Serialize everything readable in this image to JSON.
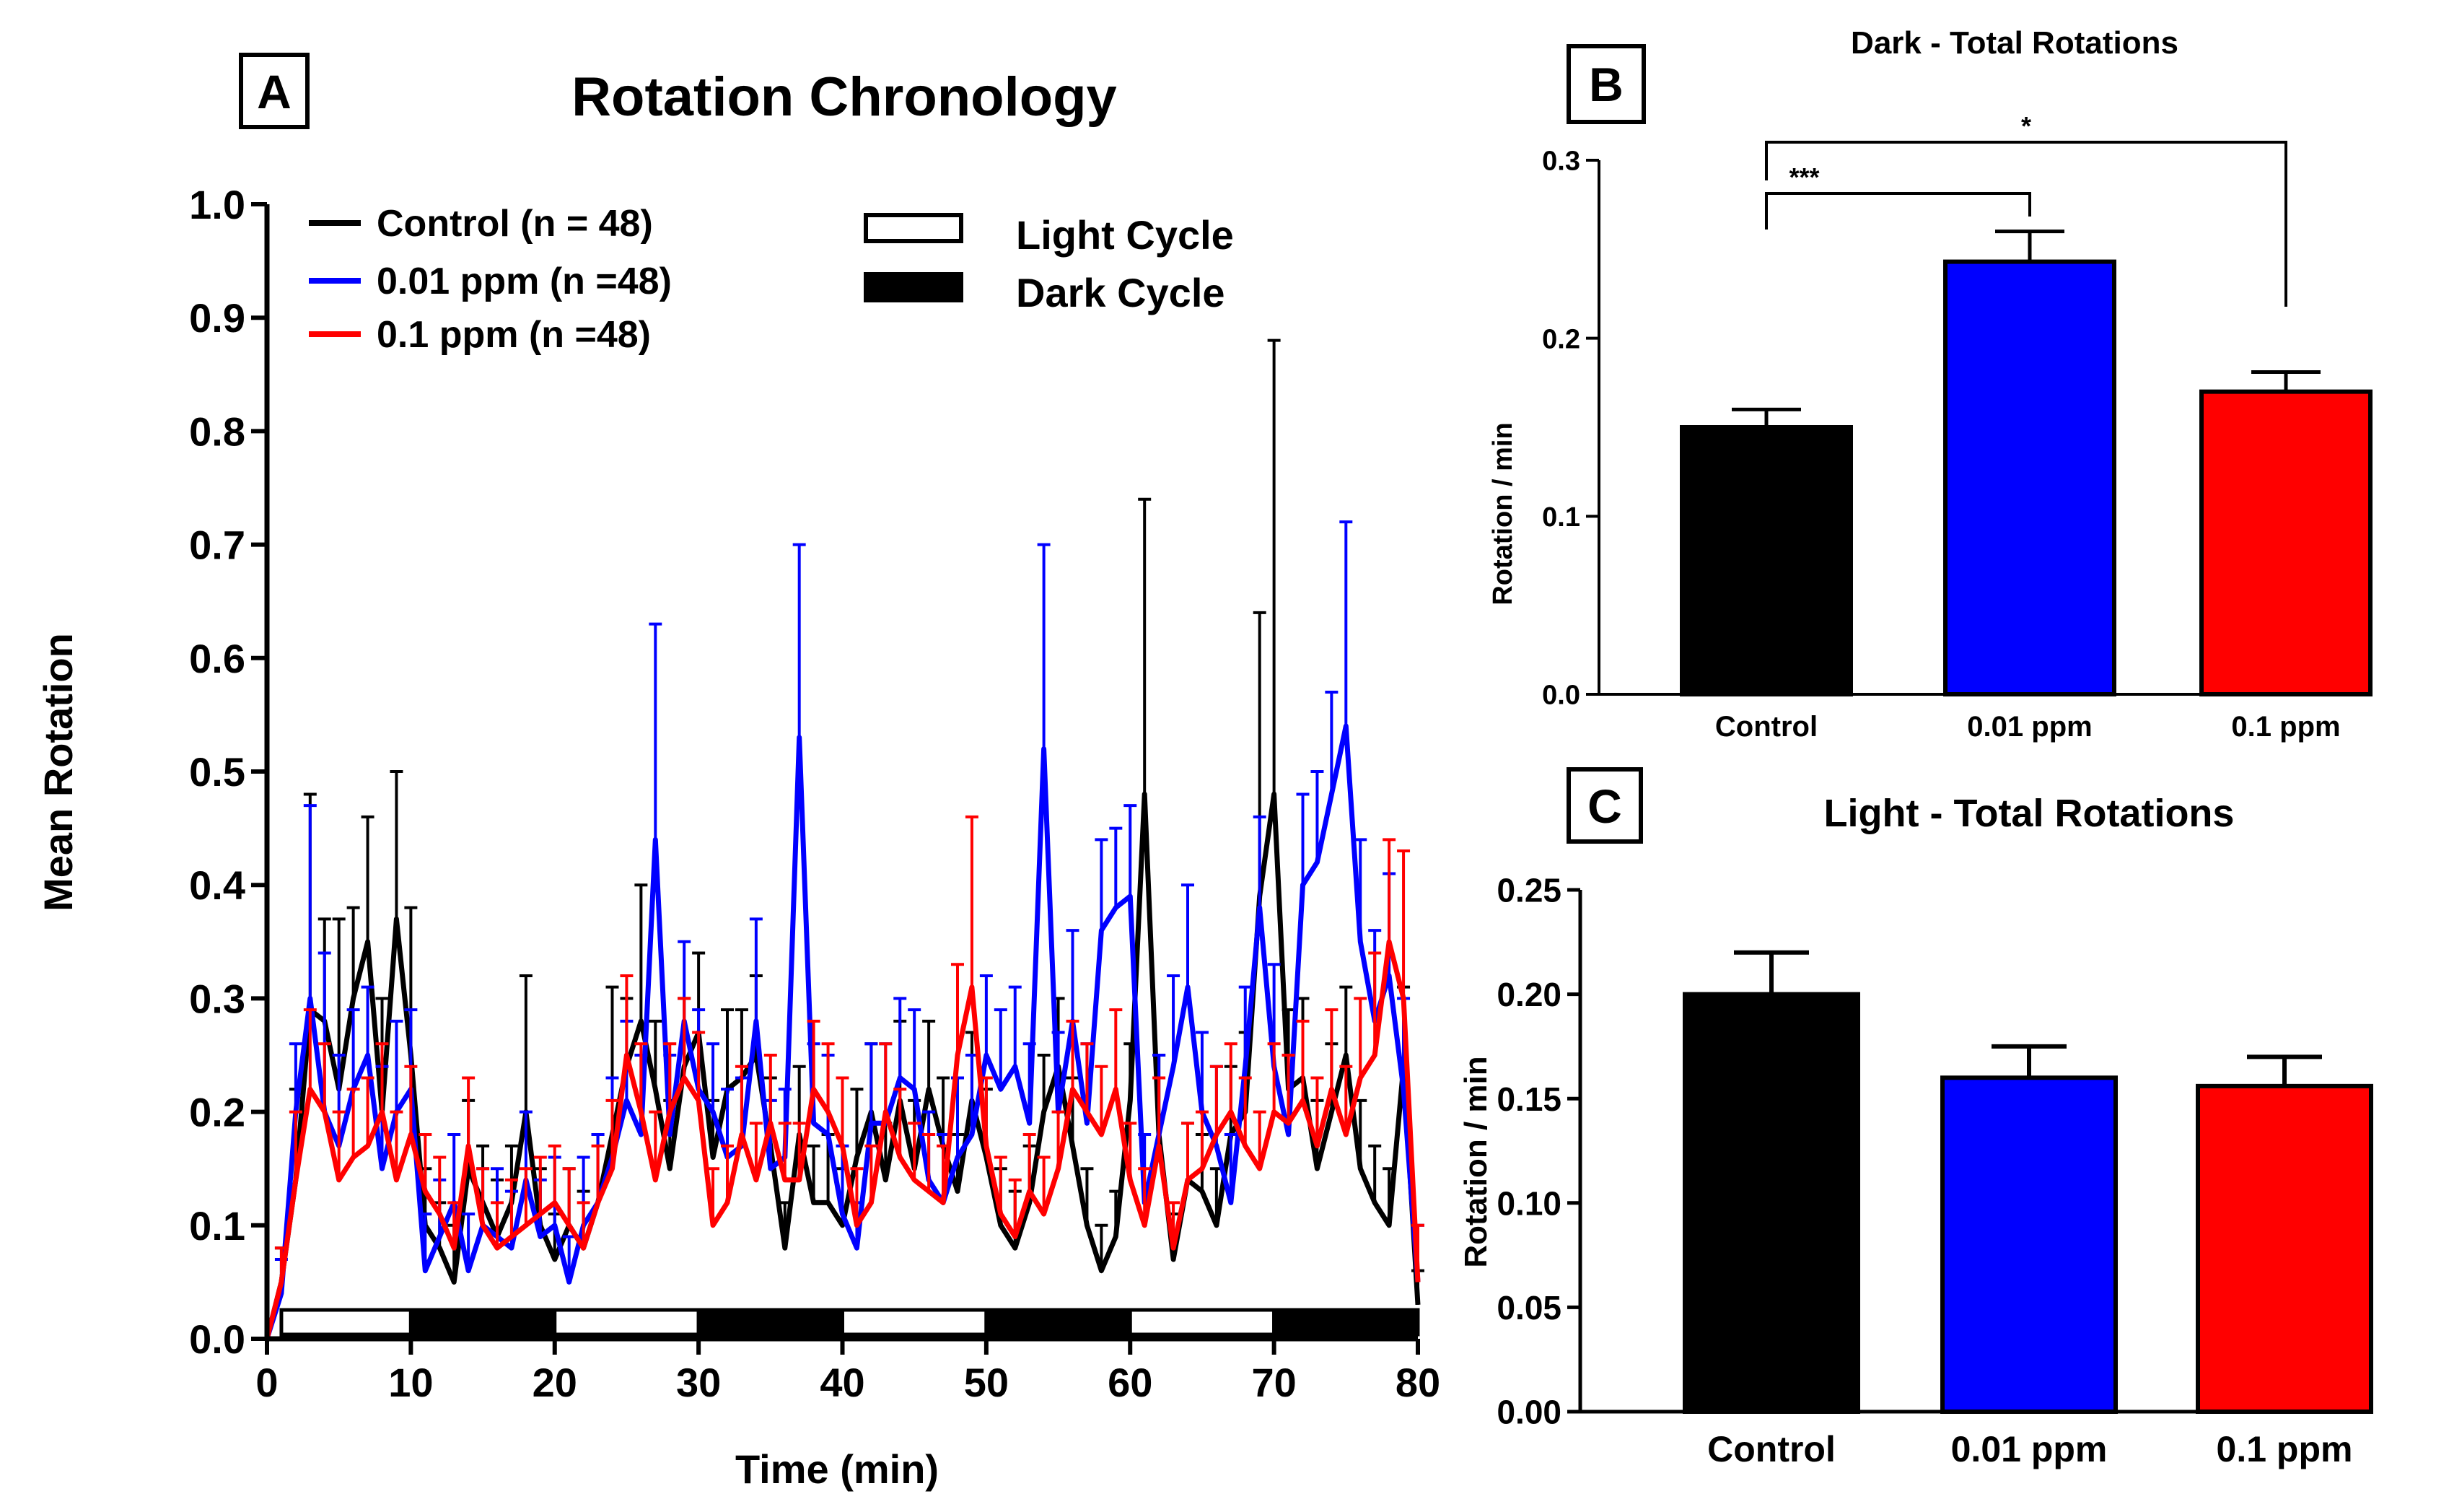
{
  "chart_data": [
    {
      "panel": "A",
      "type": "line",
      "title": "Rotation Chronology",
      "xlabel": "Time (min)",
      "ylabel": "Mean Rotation",
      "xlim": [
        0,
        80
      ],
      "ylim": [
        0,
        1.0
      ],
      "x_ticks": [
        "0",
        "10",
        "20",
        "30",
        "40",
        "50",
        "60",
        "70",
        "80"
      ],
      "y_ticks": [
        "0.0",
        "0.1",
        "0.2",
        "0.3",
        "0.4",
        "0.5",
        "0.6",
        "0.7",
        "0.8",
        "0.9",
        "1.0"
      ],
      "legend": {
        "series": [
          "Control (n = 48)",
          "0.01 ppm (n =48)",
          "0.1 ppm (n =48)"
        ],
        "cycles": [
          "Light Cycle",
          "Dark Cycle"
        ]
      },
      "cycles": [
        {
          "type": "light",
          "start": 1,
          "end": 10
        },
        {
          "type": "dark",
          "start": 10,
          "end": 20
        },
        {
          "type": "light",
          "start": 20,
          "end": 30
        },
        {
          "type": "dark",
          "start": 30,
          "end": 40
        },
        {
          "type": "light",
          "start": 40,
          "end": 50
        },
        {
          "type": "dark",
          "start": 50,
          "end": 60
        },
        {
          "type": "light",
          "start": 60,
          "end": 70
        },
        {
          "type": "dark",
          "start": 70,
          "end": 80
        }
      ],
      "x": [
        0,
        1,
        2,
        3,
        4,
        5,
        6,
        7,
        8,
        9,
        10,
        11,
        12,
        13,
        14,
        15,
        16,
        17,
        18,
        19,
        20,
        21,
        22,
        23,
        24,
        25,
        26,
        27,
        28,
        29,
        30,
        31,
        32,
        33,
        34,
        35,
        36,
        37,
        38,
        39,
        40,
        41,
        42,
        43,
        44,
        45,
        46,
        47,
        48,
        49,
        50,
        51,
        52,
        53,
        54,
        55,
        56,
        57,
        58,
        59,
        60,
        61,
        62,
        63,
        64,
        65,
        66,
        67,
        68,
        69,
        70,
        71,
        72,
        73,
        74,
        75,
        76,
        77,
        78,
        79,
        80
      ],
      "series": [
        {
          "name": "Control (n = 48)",
          "color": "#000000",
          "values": [
            0,
            0.05,
            0.14,
            0.29,
            0.28,
            0.22,
            0.3,
            0.35,
            0.2,
            0.37,
            0.25,
            0.1,
            0.08,
            0.05,
            0.15,
            0.12,
            0.09,
            0.12,
            0.2,
            0.1,
            0.07,
            0.1,
            0.08,
            0.12,
            0.18,
            0.24,
            0.28,
            0.22,
            0.15,
            0.24,
            0.27,
            0.16,
            0.22,
            0.23,
            0.25,
            0.17,
            0.08,
            0.18,
            0.12,
            0.12,
            0.1,
            0.16,
            0.2,
            0.14,
            0.21,
            0.15,
            0.22,
            0.17,
            0.13,
            0.21,
            0.16,
            0.1,
            0.08,
            0.12,
            0.2,
            0.24,
            0.17,
            0.1,
            0.06,
            0.09,
            0.21,
            0.48,
            0.18,
            0.07,
            0.14,
            0.13,
            0.1,
            0.18,
            0.2,
            0.39,
            0.48,
            0.22,
            0.23,
            0.15,
            0.2,
            0.25,
            0.15,
            0.12,
            0.1,
            0.24,
            0.03
          ],
          "errors": [
            0,
            0.03,
            0.08,
            0.19,
            0.09,
            0.15,
            0.08,
            0.11,
            0.1,
            0.13,
            0.13,
            0.05,
            0.04,
            0.05,
            0.06,
            0.05,
            0.05,
            0.05,
            0.12,
            0.05,
            0.04,
            0.05,
            0.05,
            0.06,
            0.13,
            0.06,
            0.12,
            0.06,
            0.06,
            0.06,
            0.07,
            0.05,
            0.07,
            0.06,
            0.07,
            0.06,
            0.04,
            0.06,
            0.05,
            0.06,
            0.05,
            0.06,
            0.06,
            0.05,
            0.07,
            0.06,
            0.06,
            0.06,
            0.05,
            0.06,
            0.06,
            0.05,
            0.05,
            0.05,
            0.05,
            0.06,
            0.06,
            0.05,
            0.04,
            0.04,
            0.05,
            0.26,
            0.07,
            0.04,
            0.05,
            0.05,
            0.05,
            0.06,
            0.07,
            0.25,
            0.4,
            0.07,
            0.07,
            0.06,
            0.06,
            0.06,
            0.06,
            0.05,
            0.05,
            0.07,
            0.03
          ]
        },
        {
          "name": "0.01 ppm (n =48)",
          "color": "#0000ff",
          "values": [
            0,
            0.04,
            0.2,
            0.3,
            0.2,
            0.17,
            0.22,
            0.25,
            0.15,
            0.2,
            0.22,
            0.06,
            0.09,
            0.12,
            0.06,
            0.1,
            0.09,
            0.08,
            0.14,
            0.09,
            0.1,
            0.05,
            0.1,
            0.12,
            0.16,
            0.21,
            0.18,
            0.44,
            0.18,
            0.28,
            0.22,
            0.2,
            0.16,
            0.17,
            0.28,
            0.15,
            0.16,
            0.53,
            0.19,
            0.18,
            0.11,
            0.08,
            0.19,
            0.19,
            0.23,
            0.22,
            0.14,
            0.12,
            0.16,
            0.18,
            0.25,
            0.22,
            0.24,
            0.19,
            0.52,
            0.2,
            0.28,
            0.19,
            0.36,
            0.38,
            0.39,
            0.12,
            0.18,
            0.24,
            0.31,
            0.2,
            0.17,
            0.12,
            0.24,
            0.38,
            0.24,
            0.18,
            0.4,
            0.42,
            0.48,
            0.54,
            0.35,
            0.28,
            0.32,
            0.22,
            0.05
          ],
          "errors": [
            0,
            0.03,
            0.06,
            0.17,
            0.14,
            0.08,
            0.07,
            0.06,
            0.09,
            0.08,
            0.07,
            0.05,
            0.05,
            0.06,
            0.05,
            0.05,
            0.06,
            0.05,
            0.06,
            0.05,
            0.06,
            0.04,
            0.06,
            0.06,
            0.07,
            0.07,
            0.07,
            0.19,
            0.07,
            0.07,
            0.07,
            0.06,
            0.06,
            0.06,
            0.09,
            0.06,
            0.06,
            0.17,
            0.07,
            0.07,
            0.06,
            0.04,
            0.07,
            0.07,
            0.07,
            0.07,
            0.06,
            0.06,
            0.07,
            0.07,
            0.07,
            0.07,
            0.07,
            0.07,
            0.18,
            0.07,
            0.08,
            0.07,
            0.08,
            0.07,
            0.08,
            0.06,
            0.07,
            0.08,
            0.09,
            0.07,
            0.07,
            0.06,
            0.07,
            0.08,
            0.09,
            0.07,
            0.08,
            0.08,
            0.09,
            0.18,
            0.09,
            0.08,
            0.09,
            0.08,
            0.05
          ]
        },
        {
          "name": "0.1 ppm (n =48)",
          "color": "#ff0000",
          "values": [
            0,
            0.05,
            0.14,
            0.22,
            0.2,
            0.14,
            0.16,
            0.17,
            0.2,
            0.14,
            0.18,
            0.13,
            0.11,
            0.08,
            0.17,
            0.1,
            0.08,
            0.09,
            0.1,
            0.11,
            0.12,
            0.1,
            0.08,
            0.12,
            0.15,
            0.25,
            0.2,
            0.14,
            0.2,
            0.23,
            0.21,
            0.1,
            0.12,
            0.18,
            0.14,
            0.19,
            0.14,
            0.14,
            0.22,
            0.2,
            0.17,
            0.1,
            0.12,
            0.2,
            0.16,
            0.14,
            0.13,
            0.12,
            0.25,
            0.31,
            0.17,
            0.11,
            0.09,
            0.13,
            0.11,
            0.15,
            0.22,
            0.2,
            0.18,
            0.22,
            0.14,
            0.1,
            0.17,
            0.08,
            0.14,
            0.15,
            0.18,
            0.2,
            0.17,
            0.15,
            0.2,
            0.19,
            0.21,
            0.17,
            0.22,
            0.18,
            0.23,
            0.25,
            0.35,
            0.3,
            0.05
          ],
          "errors": [
            0,
            0.03,
            0.06,
            0.07,
            0.06,
            0.06,
            0.06,
            0.06,
            0.06,
            0.06,
            0.06,
            0.05,
            0.05,
            0.04,
            0.06,
            0.05,
            0.04,
            0.05,
            0.05,
            0.05,
            0.05,
            0.05,
            0.04,
            0.05,
            0.06,
            0.07,
            0.06,
            0.06,
            0.06,
            0.07,
            0.06,
            0.05,
            0.05,
            0.06,
            0.05,
            0.06,
            0.05,
            0.05,
            0.06,
            0.06,
            0.06,
            0.05,
            0.05,
            0.06,
            0.06,
            0.05,
            0.05,
            0.05,
            0.08,
            0.15,
            0.06,
            0.05,
            0.05,
            0.05,
            0.05,
            0.05,
            0.06,
            0.06,
            0.06,
            0.07,
            0.05,
            0.05,
            0.06,
            0.04,
            0.05,
            0.05,
            0.06,
            0.06,
            0.06,
            0.05,
            0.06,
            0.06,
            0.07,
            0.06,
            0.07,
            0.06,
            0.07,
            0.09,
            0.09,
            0.13,
            0.05
          ]
        }
      ]
    },
    {
      "panel": "B",
      "type": "bar",
      "title": "Dark - Total Rotations",
      "ylabel": "Rotation / min",
      "categories": [
        "Control",
        "0.01 ppm",
        "0.1 ppm"
      ],
      "values": [
        0.15,
        0.243,
        0.17
      ],
      "errors": [
        0.01,
        0.017,
        0.011
      ],
      "colors": [
        "#000000",
        "#0000ff",
        "#ff0000"
      ],
      "ylim": [
        0,
        0.3
      ],
      "y_ticks": [
        "0.0",
        "0.1",
        "0.2",
        "0.3"
      ],
      "significance": [
        {
          "from": 0,
          "to": 1,
          "label": "***"
        },
        {
          "from": 0,
          "to": 2,
          "label": "*"
        }
      ]
    },
    {
      "panel": "C",
      "type": "bar",
      "title": "Light - Total Rotations",
      "ylabel": "Rotation / min",
      "categories": [
        "Control",
        "0.01 ppm",
        "0.1 ppm"
      ],
      "values": [
        0.2,
        0.16,
        0.156
      ],
      "errors": [
        0.02,
        0.015,
        0.014
      ],
      "colors": [
        "#000000",
        "#0000ff",
        "#ff0000"
      ],
      "ylim": [
        0,
        0.25
      ],
      "y_ticks": [
        "0.00",
        "0.05",
        "0.10",
        "0.15",
        "0.20",
        "0.25"
      ]
    }
  ]
}
